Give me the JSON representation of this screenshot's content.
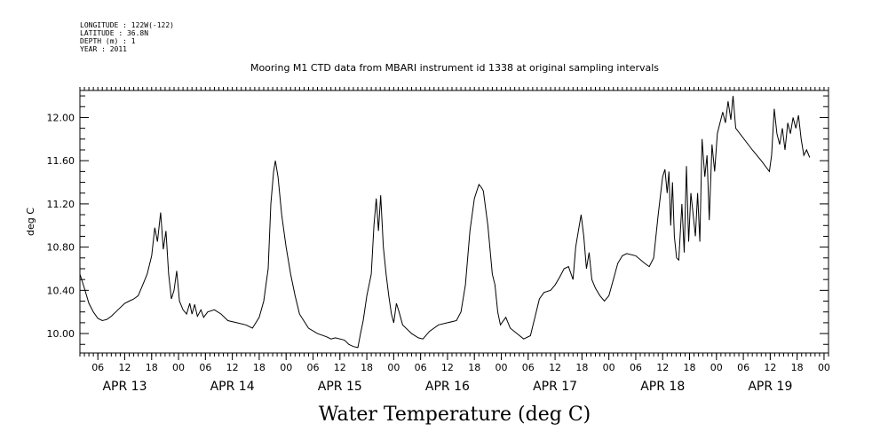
{
  "header": {
    "lines": [
      "LONGITUDE : 122W(-122)",
      "LATITUDE : 36.8N",
      "DEPTH (m) : 1",
      "YEAR : 2011"
    ]
  },
  "chart_data": {
    "type": "line",
    "title": "Mooring M1 CTD data from MBARI instrument id 1338 at original sampling intervals",
    "xlabel": "Water Temperature (deg C)",
    "ylabel": "deg C",
    "ylim": [
      9.82,
      12.25
    ],
    "yticks": [
      10.0,
      10.4,
      10.8,
      11.2,
      11.6,
      12.0
    ],
    "ytick_labels": [
      "10.00",
      "10.40",
      "10.80",
      "11.20",
      "11.60",
      "12.00"
    ],
    "xlim_hours": [
      0,
      167
    ],
    "x_start": "APR 13 02:00",
    "x_unit": "hours",
    "x_hour_labels": [
      "06",
      "12",
      "18",
      "00",
      "06",
      "12",
      "18",
      "00",
      "06",
      "12",
      "18",
      "00",
      "06",
      "12",
      "18",
      "00",
      "06",
      "12",
      "18",
      "00",
      "06",
      "12",
      "18",
      "00",
      "06",
      "12",
      "18",
      "00"
    ],
    "x_day_labels": [
      "APR 13",
      "APR 14",
      "APR 15",
      "APR 16",
      "APR 17",
      "APR 18",
      "APR 19"
    ],
    "grid": false,
    "series": [
      {
        "values": [
          [
            0,
            10.55
          ],
          [
            1,
            10.42
          ],
          [
            2,
            10.28
          ],
          [
            3,
            10.2
          ],
          [
            4,
            10.14
          ],
          [
            5,
            10.12
          ],
          [
            6,
            10.13
          ],
          [
            7,
            10.16
          ],
          [
            8,
            10.2
          ],
          [
            9,
            10.24
          ],
          [
            10,
            10.28
          ],
          [
            11,
            10.3
          ],
          [
            12,
            10.32
          ],
          [
            13,
            10.35
          ],
          [
            14,
            10.45
          ],
          [
            15,
            10.55
          ],
          [
            16,
            10.72
          ],
          [
            16.7,
            10.98
          ],
          [
            17.3,
            10.85
          ],
          [
            18,
            11.12
          ],
          [
            18.6,
            10.78
          ],
          [
            19.2,
            10.95
          ],
          [
            19.8,
            10.55
          ],
          [
            20.4,
            10.32
          ],
          [
            21,
            10.4
          ],
          [
            21.6,
            10.58
          ],
          [
            22.2,
            10.3
          ],
          [
            23,
            10.22
          ],
          [
            23.8,
            10.18
          ],
          [
            24.5,
            10.28
          ],
          [
            25,
            10.18
          ],
          [
            25.6,
            10.27
          ],
          [
            26.2,
            10.16
          ],
          [
            27,
            10.22
          ],
          [
            27.6,
            10.15
          ],
          [
            28.5,
            10.2
          ],
          [
            30,
            10.22
          ],
          [
            31.5,
            10.18
          ],
          [
            33,
            10.12
          ],
          [
            35,
            10.1
          ],
          [
            37,
            10.08
          ],
          [
            38.5,
            10.05
          ],
          [
            40,
            10.15
          ],
          [
            41,
            10.3
          ],
          [
            42,
            10.6
          ],
          [
            42.6,
            11.2
          ],
          [
            43.2,
            11.5
          ],
          [
            43.6,
            11.6
          ],
          [
            44.2,
            11.45
          ],
          [
            45,
            11.1
          ],
          [
            46,
            10.8
          ],
          [
            47,
            10.55
          ],
          [
            48,
            10.35
          ],
          [
            49,
            10.18
          ],
          [
            51,
            10.05
          ],
          [
            53,
            10.0
          ],
          [
            55,
            9.97
          ],
          [
            56,
            9.95
          ],
          [
            57,
            9.96
          ],
          [
            59,
            9.94
          ],
          [
            60,
            9.9
          ],
          [
            61,
            9.88
          ],
          [
            62,
            9.87
          ],
          [
            62.6,
            10.0
          ],
          [
            63.2,
            10.12
          ],
          [
            64,
            10.35
          ],
          [
            65,
            10.55
          ],
          [
            65.6,
            11.0
          ],
          [
            66.1,
            11.25
          ],
          [
            66.6,
            10.95
          ],
          [
            67.1,
            11.28
          ],
          [
            67.7,
            10.8
          ],
          [
            68.3,
            10.55
          ],
          [
            68.9,
            10.35
          ],
          [
            69.5,
            10.18
          ],
          [
            70,
            10.1
          ],
          [
            70.6,
            10.28
          ],
          [
            71.2,
            10.2
          ],
          [
            72,
            10.08
          ],
          [
            74,
            10.0
          ],
          [
            75.5,
            9.96
          ],
          [
            76.5,
            9.95
          ],
          [
            78,
            10.02
          ],
          [
            80,
            10.08
          ],
          [
            82,
            10.1
          ],
          [
            84,
            10.12
          ],
          [
            85,
            10.2
          ],
          [
            86,
            10.45
          ],
          [
            87,
            10.95
          ],
          [
            88,
            11.25
          ],
          [
            89,
            11.38
          ],
          [
            89.6,
            11.35
          ],
          [
            90,
            11.32
          ],
          [
            91,
            11.0
          ],
          [
            92,
            10.55
          ],
          [
            92.6,
            10.45
          ],
          [
            93.2,
            10.2
          ],
          [
            93.8,
            10.08
          ],
          [
            95,
            10.15
          ],
          [
            96,
            10.05
          ],
          [
            97.5,
            10.0
          ],
          [
            99,
            9.95
          ],
          [
            100.5,
            9.98
          ],
          [
            101.5,
            10.15
          ],
          [
            102.5,
            10.32
          ],
          [
            103.5,
            10.38
          ],
          [
            105,
            10.4
          ],
          [
            106,
            10.45
          ],
          [
            107,
            10.52
          ],
          [
            108,
            10.6
          ],
          [
            109,
            10.62
          ],
          [
            110,
            10.5
          ],
          [
            110.6,
            10.8
          ],
          [
            111.2,
            10.95
          ],
          [
            111.8,
            11.1
          ],
          [
            112.4,
            10.9
          ],
          [
            113,
            10.6
          ],
          [
            113.6,
            10.75
          ],
          [
            114.2,
            10.5
          ],
          [
            115,
            10.42
          ],
          [
            116,
            10.35
          ],
          [
            117,
            10.3
          ],
          [
            118,
            10.35
          ],
          [
            119,
            10.5
          ],
          [
            120,
            10.65
          ],
          [
            121,
            10.72
          ],
          [
            122,
            10.74
          ],
          [
            124,
            10.72
          ],
          [
            126,
            10.65
          ],
          [
            127,
            10.62
          ],
          [
            128,
            10.7
          ],
          [
            129,
            11.1
          ],
          [
            130,
            11.45
          ],
          [
            130.5,
            11.52
          ],
          [
            131,
            11.3
          ],
          [
            131.4,
            11.5
          ],
          [
            131.8,
            11.0
          ],
          [
            132.2,
            11.4
          ],
          [
            132.6,
            10.9
          ],
          [
            133.1,
            10.7
          ],
          [
            133.6,
            10.68
          ],
          [
            134.3,
            11.2
          ],
          [
            134.8,
            10.75
          ],
          [
            135.3,
            11.55
          ],
          [
            135.8,
            10.85
          ],
          [
            136.3,
            11.3
          ],
          [
            136.8,
            11.1
          ],
          [
            137.3,
            10.9
          ],
          [
            137.8,
            11.3
          ],
          [
            138.3,
            10.85
          ],
          [
            138.8,
            11.8
          ],
          [
            139.4,
            11.45
          ],
          [
            139.9,
            11.65
          ],
          [
            140.4,
            11.05
          ],
          [
            141,
            11.75
          ],
          [
            141.6,
            11.5
          ],
          [
            142.2,
            11.85
          ],
          [
            142.8,
            11.95
          ],
          [
            143.4,
            12.05
          ],
          [
            144,
            11.95
          ],
          [
            144.6,
            12.15
          ],
          [
            145.2,
            11.98
          ],
          [
            145.7,
            12.2
          ],
          [
            146.3,
            11.9
          ],
          [
            150,
            11.7
          ],
          [
            152,
            11.6
          ],
          [
            153.8,
            11.5
          ],
          [
            154.3,
            11.65
          ],
          [
            154.9,
            12.08
          ],
          [
            155.5,
            11.85
          ],
          [
            156.1,
            11.75
          ],
          [
            156.7,
            11.9
          ],
          [
            157.3,
            11.7
          ],
          [
            157.9,
            11.95
          ],
          [
            158.5,
            11.85
          ],
          [
            159.1,
            12.0
          ],
          [
            159.7,
            11.9
          ],
          [
            160.3,
            12.02
          ],
          [
            160.9,
            11.8
          ],
          [
            161.5,
            11.65
          ],
          [
            162.1,
            11.7
          ],
          [
            162.8,
            11.63
          ]
        ]
      }
    ]
  }
}
